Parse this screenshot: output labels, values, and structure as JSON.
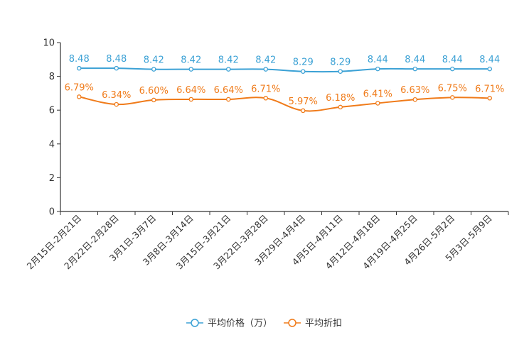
{
  "chart_data": {
    "type": "line",
    "title": "",
    "xlabel": "",
    "ylabel": "",
    "ylim": [
      0,
      10
    ],
    "yticks": [
      "0",
      "2",
      "4",
      "6",
      "8",
      "10"
    ],
    "ytick_values": [
      0,
      2,
      4,
      6,
      8,
      10
    ],
    "grid": false,
    "legend_position": "bottom-center",
    "categories": [
      "2月15日-2月21日",
      "2月22日-2月28日",
      "3月1日-3月7日",
      "3月8日-3月14日",
      "3月15日-3月21日",
      "3月22日-3月28日",
      "3月29日-4月4日",
      "4月5日-4月11日",
      "4月12日-4月18日",
      "4月19日-4月25日",
      "4月26日-5月2日",
      "5月3日-5月9日"
    ],
    "series": [
      {
        "name": "平均价格（万）",
        "color": "#3ba1d5",
        "values": [
          8.48,
          8.48,
          8.42,
          8.42,
          8.42,
          8.42,
          8.29,
          8.29,
          8.44,
          8.44,
          8.44,
          8.44
        ],
        "labels": [
          "8.48",
          "8.48",
          "8.42",
          "8.42",
          "8.42",
          "8.42",
          "8.29",
          "8.29",
          "8.44",
          "8.44",
          "8.44",
          "8.44"
        ]
      },
      {
        "name": "平均折扣",
        "color": "#f07b1a",
        "values": [
          6.79,
          6.34,
          6.6,
          6.64,
          6.64,
          6.71,
          5.97,
          6.18,
          6.41,
          6.63,
          6.75,
          6.71
        ],
        "labels": [
          "6.79%",
          "6.34%",
          "6.60%",
          "6.64%",
          "6.64%",
          "6.71%",
          "5.97%",
          "6.18%",
          "6.41%",
          "6.63%",
          "6.75%",
          "6.71%"
        ]
      }
    ]
  }
}
